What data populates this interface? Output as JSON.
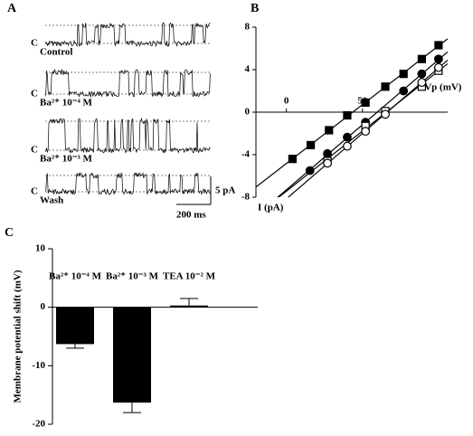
{
  "panel_letters": [
    "A",
    "B",
    "C"
  ],
  "panel_a": {
    "traces": [
      {
        "marker": "C",
        "label": "Control"
      },
      {
        "marker": "C",
        "label": "Ba²⁺ 10⁻⁴ M"
      },
      {
        "marker": "C",
        "label": "Ba²⁺ 10⁻³ M"
      },
      {
        "marker": "C",
        "label": "Wash"
      }
    ],
    "scale_y": "5 pA",
    "scale_x": "200 ms"
  },
  "chart_data": [
    {
      "type": "scatter",
      "xlabel": "- Vp (mV)",
      "ylabel": "I (pA)",
      "xlim": [
        -20,
        106
      ],
      "ylim": [
        -8,
        8
      ],
      "xticks": [
        0,
        50
      ],
      "yticks": [
        -8,
        -4,
        0,
        4,
        8
      ],
      "series": [
        {
          "marker": "square",
          "color": "#000000",
          "filled": true,
          "x": [
            4,
            16,
            28,
            40,
            52,
            65,
            77,
            89,
            100
          ],
          "y": [
            -4.4,
            -3.1,
            -1.7,
            -0.3,
            0.9,
            2.4,
            3.6,
            5.0,
            6.3
          ]
        },
        {
          "marker": "circle",
          "color": "#000000",
          "filled": true,
          "x": [
            15.5,
            27,
            40,
            52,
            77,
            89,
            100
          ],
          "y": [
            -5.5,
            -3.9,
            -2.35,
            -0.95,
            2.0,
            3.6,
            5.0
          ]
        },
        {
          "marker": "square",
          "color": "#000000",
          "filled": false,
          "x": [
            27,
            52,
            65,
            89,
            100
          ],
          "y": [
            -4.6,
            -1.3,
            0.1,
            2.4,
            3.9
          ]
        },
        {
          "marker": "circle",
          "color": "#000000",
          "filled": false,
          "x": [
            27,
            40,
            52,
            65,
            89,
            100
          ],
          "y": [
            -4.8,
            -3.2,
            -1.8,
            -0.2,
            2.8,
            4.2
          ]
        }
      ]
    },
    {
      "type": "bar",
      "ylabel": "Membrane potential shift (mV)",
      "categories": [
        "Ba²⁺ 10⁻⁴ M",
        "Ba²⁺ 10⁻³ M",
        "TEA 10⁻² M"
      ],
      "values": [
        -6.3,
        -16.3,
        0.3
      ],
      "errors": [
        0.7,
        1.7,
        1.2
      ],
      "color": "#000000",
      "ylim": [
        -20,
        10
      ],
      "yticks": [
        -20,
        -10,
        0,
        10
      ]
    }
  ]
}
